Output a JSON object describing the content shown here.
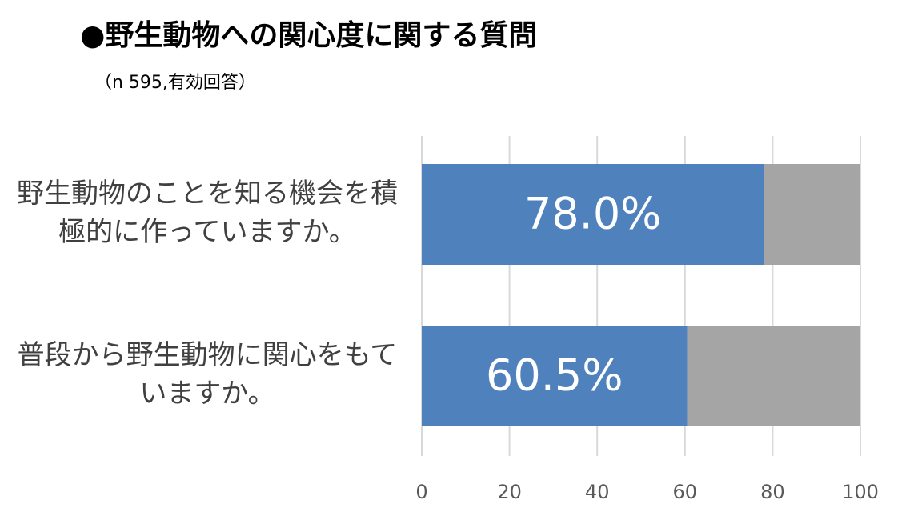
{
  "chart_data": {
    "type": "stacked_barh",
    "title": "●野生動物への関心度に関する質問",
    "subtitle": "（n 595,有効回答）",
    "categories": [
      "野生動物のことを知る機会を積極的に作っていますか。",
      "普段から野生動物に関心をもていますか。"
    ],
    "series": [
      {
        "color": "#4f81bd",
        "values": [
          78.0,
          60.5
        ],
        "value_labels": [
          "78.0%",
          "60.5%"
        ]
      },
      {
        "color": "#a5a5a5",
        "values": [
          22.0,
          39.5
        ]
      }
    ],
    "xlim": [
      0,
      100
    ],
    "xticks": [
      0,
      20,
      40,
      60,
      80,
      100
    ],
    "grid": true
  }
}
